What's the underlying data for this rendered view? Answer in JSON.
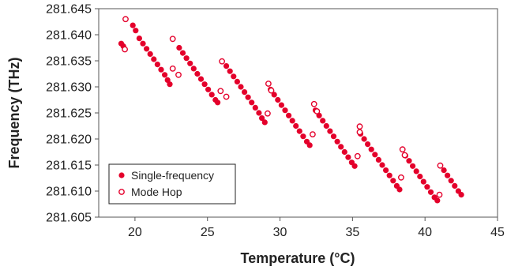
{
  "chart_data": {
    "type": "scatter",
    "xlabel": "Temperature (°C)",
    "ylabel": "Frequency (THz)",
    "xlim": [
      17.5,
      45
    ],
    "ylim": [
      281.605,
      281.645
    ],
    "xticks": [
      20,
      25,
      30,
      35,
      40,
      45
    ],
    "xtick_labels": [
      "20",
      "25",
      "30",
      "35",
      "40",
      "45"
    ],
    "yticks": [
      281.605,
      281.61,
      281.615,
      281.62,
      281.625,
      281.63,
      281.635,
      281.64,
      281.645
    ],
    "ytick_labels": [
      "281.605",
      "281.610",
      "281.615",
      "281.620",
      "281.625",
      "281.630",
      "281.635",
      "281.640",
      "281.645"
    ],
    "grid": false,
    "legend_position": "bottom-left",
    "series": [
      {
        "name": "Single-frequency",
        "marker": "filled-circle",
        "color": "#e4002b",
        "x": [
          19.05,
          19.2,
          19.85,
          20.05,
          20.3,
          20.55,
          20.8,
          21.05,
          21.3,
          21.55,
          21.8,
          22.05,
          22.25,
          22.4,
          23.05,
          23.3,
          23.55,
          23.8,
          24.05,
          24.3,
          24.55,
          24.8,
          25.05,
          25.3,
          25.55,
          25.7,
          26.3,
          26.55,
          26.8,
          27.05,
          27.3,
          27.55,
          27.8,
          28.05,
          28.3,
          28.55,
          28.75,
          28.95,
          29.35,
          29.6,
          29.85,
          30.1,
          30.35,
          30.6,
          30.85,
          31.1,
          31.35,
          31.6,
          31.85,
          32.05,
          32.45,
          32.7,
          32.95,
          33.2,
          33.45,
          33.7,
          33.95,
          34.2,
          34.45,
          34.7,
          34.95,
          35.15,
          35.55,
          35.8,
          36.05,
          36.3,
          36.55,
          36.8,
          37.05,
          37.3,
          37.55,
          37.8,
          38.05,
          38.25,
          38.65,
          38.9,
          39.15,
          39.4,
          39.65,
          39.9,
          40.15,
          40.4,
          40.65,
          40.85,
          41.3,
          41.55,
          41.8,
          42.05,
          42.3,
          42.5
        ],
        "y": [
          281.6383,
          281.6378,
          281.6418,
          281.6408,
          281.6393,
          281.6383,
          281.6373,
          281.6363,
          281.6353,
          281.6343,
          281.6333,
          281.6323,
          281.6313,
          281.6305,
          281.6375,
          281.6365,
          281.6355,
          281.6345,
          281.6335,
          281.6325,
          281.6315,
          281.6305,
          281.6295,
          281.6285,
          281.6275,
          281.627,
          281.634,
          281.633,
          281.632,
          281.631,
          281.63,
          281.629,
          281.628,
          281.627,
          281.626,
          281.625,
          281.624,
          281.6232,
          281.6295,
          281.6285,
          281.6275,
          281.6265,
          281.6255,
          281.6245,
          281.6235,
          281.6225,
          281.6215,
          281.6205,
          281.6195,
          281.6188,
          281.6255,
          281.6245,
          281.6235,
          281.6225,
          281.6215,
          281.6205,
          281.6195,
          281.6185,
          281.6175,
          281.6165,
          281.6155,
          281.6148,
          281.621,
          281.62,
          281.619,
          281.618,
          281.617,
          281.616,
          281.615,
          281.614,
          281.613,
          281.612,
          281.611,
          281.6103,
          281.6168,
          281.6158,
          281.6148,
          281.6138,
          281.6128,
          281.6118,
          281.6108,
          281.6098,
          281.6088,
          281.6082,
          281.614,
          281.613,
          281.612,
          281.611,
          281.61,
          281.6093
        ]
      },
      {
        "name": "Mode Hop",
        "marker": "open-circle",
        "color": "#e4002b",
        "x": [
          19.3,
          19.35,
          22.6,
          22.6,
          23.0,
          25.9,
          26.0,
          26.3,
          29.15,
          29.2,
          29.4,
          32.25,
          32.35,
          32.55,
          35.35,
          35.5,
          35.5,
          38.35,
          38.45,
          38.6,
          41.0,
          41.05
        ],
        "y": [
          281.6372,
          281.643,
          281.6335,
          281.6392,
          281.6323,
          281.6292,
          281.6349,
          281.6281,
          281.6249,
          281.6306,
          281.6293,
          281.6209,
          281.6267,
          281.6253,
          281.6167,
          281.6224,
          281.6213,
          281.6126,
          281.618,
          281.6169,
          281.6093,
          281.6149
        ]
      }
    ]
  }
}
